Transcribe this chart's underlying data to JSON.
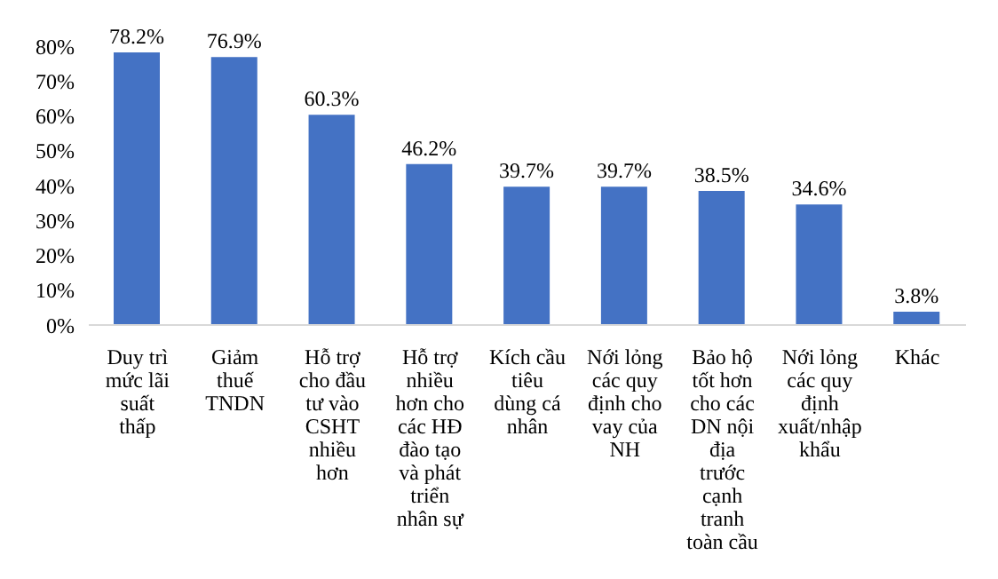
{
  "chart_data": {
    "type": "bar",
    "categories": [
      "Duy trì mức lãi suất thấp",
      "Giảm thuế TNDN",
      "Hỗ trợ cho đầu tư vào CSHT nhiều hơn",
      "Hỗ trợ nhiều hơn cho các HĐ đào tạo và phát triển nhân sự",
      "Kích cầu tiêu dùng cá nhân",
      "Nới lỏng các quy định cho vay của NH",
      "Bảo hộ tốt hơn cho các DN nội địa trước cạnh tranh toàn cầu",
      "Nới lỏng các quy định xuất/nhập khẩu",
      "Khác"
    ],
    "values": [
      78.2,
      76.9,
      60.3,
      46.2,
      39.7,
      39.7,
      38.5,
      34.6,
      3.8
    ],
    "value_labels": [
      "78.2%",
      "76.9%",
      "60.3%",
      "46.2%",
      "39.7%",
      "39.7%",
      "38.5%",
      "34.6%",
      "3.8%"
    ],
    "color": "#4472c4",
    "ylim": [
      0,
      80
    ],
    "yticks": [
      {
        "value": 0,
        "label": "0%"
      },
      {
        "value": 10,
        "label": "10%"
      },
      {
        "value": 20,
        "label": "20%"
      },
      {
        "value": 30,
        "label": "30%"
      },
      {
        "value": 40,
        "label": "40%"
      },
      {
        "value": 50,
        "label": "50%"
      },
      {
        "value": 60,
        "label": "60%"
      },
      {
        "value": 70,
        "label": "70%"
      },
      {
        "value": 80,
        "label": "80%"
      }
    ],
    "grid": false,
    "legend": false
  }
}
